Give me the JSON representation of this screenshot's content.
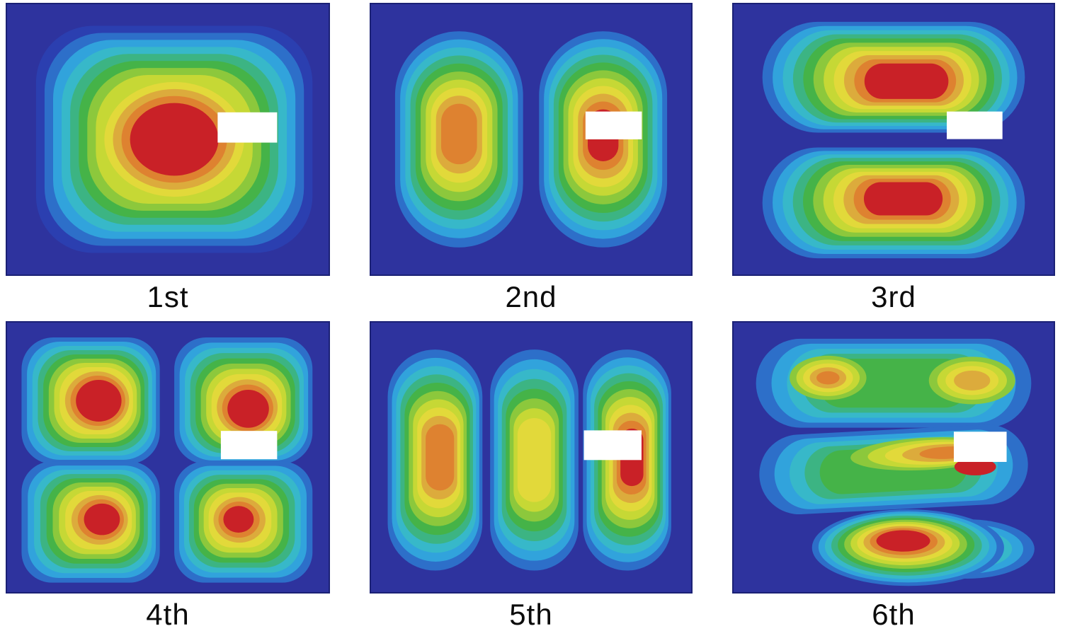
{
  "chart_data": {
    "type": "heatmap",
    "subtype": "contour-mode-shapes",
    "title": "",
    "grid": {
      "rows": 2,
      "cols": 3
    },
    "legend": "none",
    "colormap": {
      "name": "jet-like",
      "background": "#2e339e",
      "levels": [
        "#2b3fb0",
        "#2d6fc9",
        "#31a3dc",
        "#37b8c9",
        "#3cb483",
        "#45b348",
        "#8cc83c",
        "#c6d835",
        "#e2d93a",
        "#dcab3c",
        "#de8230",
        "#c92127"
      ]
    },
    "patch_color": "#ffffff",
    "panels": [
      {
        "label": "1st",
        "mode": 1,
        "pattern": "1x1 single central antinode",
        "lobes": [
          {
            "shape": "squarish",
            "cx": 0.52,
            "cy": 0.5,
            "rx": 0.43,
            "ry": 0.42,
            "start": 0,
            "end": 11,
            "coreScale": 0.32
          }
        ],
        "patch": {
          "x": 0.655,
          "y": 0.4,
          "w": 0.185,
          "h": 0.112
        }
      },
      {
        "label": "2nd",
        "mode": 2,
        "pattern": "2x1 two vertical antinodes",
        "lobes": [
          {
            "shape": "vstadium",
            "cx": 0.275,
            "cy": 0.5,
            "rx": 0.2,
            "ry": 0.4,
            "start": 1,
            "end": 10,
            "coreScale": 0.28,
            "ccy": 0.48
          },
          {
            "shape": "vstadium",
            "cx": 0.725,
            "cy": 0.5,
            "rx": 0.2,
            "ry": 0.4,
            "start": 1,
            "end": 11,
            "coreScale": 0.24,
            "ccy": 0.485
          }
        ],
        "patch": {
          "x": 0.67,
          "y": 0.397,
          "w": 0.176,
          "h": 0.103
        }
      },
      {
        "label": "3rd",
        "mode": 3,
        "pattern": "1x2 two horizontal antinodes",
        "lobes": [
          {
            "shape": "hstadium",
            "cx": 0.5,
            "cy": 0.27,
            "rx": 0.41,
            "ry": 0.205,
            "start": 1,
            "end": 11,
            "coreScale": 0.32,
            "ccx": 0.54,
            "ccy": 0.285
          },
          {
            "shape": "hstadium",
            "cx": 0.5,
            "cy": 0.735,
            "rx": 0.41,
            "ry": 0.205,
            "start": 1,
            "end": 11,
            "coreScale": 0.3,
            "ccx": 0.53,
            "ccy": 0.72
          }
        ],
        "patch": {
          "x": 0.666,
          "y": 0.397,
          "w": 0.174,
          "h": 0.102
        }
      },
      {
        "label": "4th",
        "mode": 4,
        "pattern": "2x2 four antinodes",
        "lobes": [
          {
            "shape": "squarish",
            "cx": 0.26,
            "cy": 0.29,
            "rx": 0.215,
            "ry": 0.235,
            "start": 1,
            "end": 11,
            "coreScale": 0.33,
            "ccx": 0.285
          },
          {
            "shape": "squarish",
            "cx": 0.735,
            "cy": 0.29,
            "rx": 0.215,
            "ry": 0.235,
            "start": 1,
            "end": 11,
            "coreScale": 0.3,
            "ccx": 0.75,
            "ccy": 0.32
          },
          {
            "shape": "squarish",
            "cx": 0.26,
            "cy": 0.74,
            "rx": 0.215,
            "ry": 0.225,
            "start": 1,
            "end": 11,
            "coreScale": 0.26,
            "ccx": 0.295,
            "ccy": 0.73
          },
          {
            "shape": "squarish",
            "cx": 0.735,
            "cy": 0.74,
            "rx": 0.215,
            "ry": 0.225,
            "start": 1,
            "end": 11,
            "coreScale": 0.22,
            "ccx": 0.72,
            "ccy": 0.73
          }
        ],
        "patch": {
          "x": 0.665,
          "y": 0.402,
          "w": 0.175,
          "h": 0.105
        }
      },
      {
        "label": "5th",
        "mode": 5,
        "pattern": "3x1 three vertical antinodes",
        "lobes": [
          {
            "shape": "vstadium",
            "cx": 0.2,
            "cy": 0.51,
            "rx": 0.148,
            "ry": 0.41,
            "start": 1,
            "end": 10,
            "coreScale": 0.3,
            "ccx": 0.215,
            "ccy": 0.5
          },
          {
            "shape": "vstadium",
            "cx": 0.51,
            "cy": 0.51,
            "rx": 0.138,
            "ry": 0.41,
            "start": 1,
            "end": 8,
            "coreScale": 0.38
          },
          {
            "shape": "vstadium",
            "cx": 0.8,
            "cy": 0.51,
            "rx": 0.138,
            "ry": 0.41,
            "start": 1,
            "end": 11,
            "coreScale": 0.26,
            "ccx": 0.815,
            "ccy": 0.5
          }
        ],
        "patch": {
          "x": 0.665,
          "y": 0.4,
          "w": 0.18,
          "h": 0.11
        }
      },
      {
        "label": "6th",
        "mode": 6,
        "pattern": "irregular: two upper bands and lower antinode",
        "lobes": [
          {
            "shape": "hstadium",
            "cx": 0.5,
            "cy": 0.225,
            "rx": 0.43,
            "ry": 0.165,
            "start": 1,
            "end": 5,
            "coreScale": 0.55
          },
          {
            "shape": "ellipse",
            "cx": 0.295,
            "cy": 0.205,
            "rx": 0.12,
            "ry": 0.082,
            "start": 6,
            "end": 10,
            "coreScale": 0.3
          },
          {
            "shape": "ellipse",
            "cx": 0.745,
            "cy": 0.215,
            "rx": 0.135,
            "ry": 0.088,
            "start": 6,
            "end": 9,
            "coreScale": 0.42
          },
          {
            "shape": "hstadium",
            "cx": 0.5,
            "cy": 0.545,
            "rx": 0.42,
            "ry": 0.148,
            "start": 1,
            "end": 5,
            "coreScale": 0.55,
            "rot": -3
          },
          {
            "shape": "ellipse",
            "cx": 0.6,
            "cy": 0.487,
            "rx": 0.235,
            "ry": 0.06,
            "start": 6,
            "end": 10,
            "coreScale": 0.38,
            "rot": -3,
            "ccx": 0.67
          },
          {
            "shape": "ellipse",
            "cx": 0.755,
            "cy": 0.535,
            "rx": 0.065,
            "ry": 0.032,
            "start": 11,
            "end": 11,
            "coreScale": 1.0
          },
          {
            "shape": "ellipse",
            "cx": 0.73,
            "cy": 0.84,
            "rx": 0.21,
            "ry": 0.11,
            "start": 1,
            "end": 4,
            "coreScale": 0.5
          },
          {
            "shape": "ellipse",
            "cx": 0.545,
            "cy": 0.835,
            "rx": 0.3,
            "ry": 0.142,
            "start": 1,
            "end": 11,
            "coreScale": 0.28,
            "ccx": 0.53,
            "ccy": 0.81
          }
        ],
        "patch": {
          "x": 0.688,
          "y": 0.405,
          "w": 0.165,
          "h": 0.112
        }
      }
    ]
  }
}
